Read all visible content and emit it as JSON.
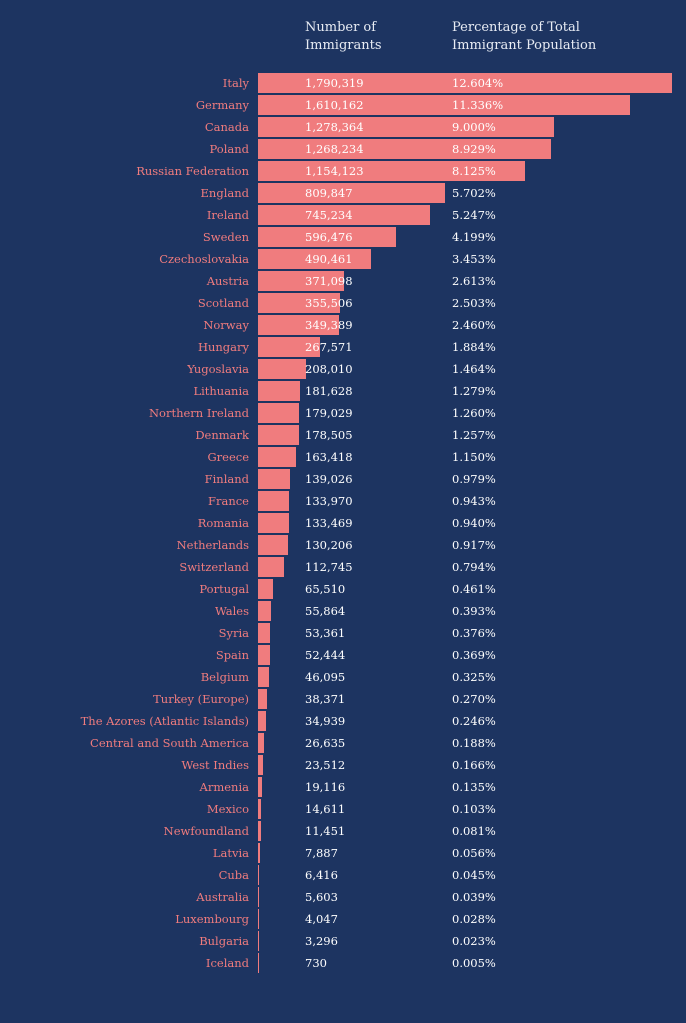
{
  "chart_data": {
    "type": "bar",
    "orientation": "horizontal",
    "title": "",
    "column_headers": {
      "count": "Number of Immigrants",
      "count_lines": [
        "Number of",
        "Immigrants"
      ],
      "percent": "Percentage of Total Immigrant Population",
      "percent_lines": [
        "Percentage of Total",
        "Immigrant Population"
      ]
    },
    "xlim": [
      0,
      1790319
    ],
    "grid": false,
    "colors": {
      "background": "#1d3461",
      "bar": "#f07c7e",
      "label": "#f07c7e",
      "value_text": "#ffffff"
    },
    "categories": [
      "Italy",
      "Germany",
      "Canada",
      "Poland",
      "Russian Federation",
      "England",
      "Ireland",
      "Sweden",
      "Czechoslovakia",
      "Austria",
      "Scotland",
      "Norway",
      "Hungary",
      "Yugoslavia",
      "Lithuania",
      "Northern Ireland",
      "Denmark",
      "Greece",
      "Finland",
      "France",
      "Romania",
      "Netherlands",
      "Switzerland",
      "Portugal",
      "Wales",
      "Syria",
      "Spain",
      "Belgium",
      "Turkey (Europe)",
      "The Azores (Atlantic Islands)",
      "Central and South America",
      "West Indies",
      "Armenia",
      "Mexico",
      "Newfoundland",
      "Latvia",
      "Cuba",
      "Australia",
      "Luxembourg",
      "Bulgaria",
      "Iceland"
    ],
    "values": [
      1790319,
      1610162,
      1278364,
      1268234,
      1154123,
      809847,
      745234,
      596476,
      490461,
      371098,
      355506,
      349389,
      267571,
      208010,
      181628,
      179029,
      178505,
      163418,
      139026,
      133970,
      133469,
      130206,
      112745,
      65510,
      55864,
      53361,
      52444,
      46095,
      38371,
      34939,
      26635,
      23512,
      19116,
      14611,
      11451,
      7887,
      6416,
      5603,
      4047,
      3296,
      730
    ],
    "value_labels": [
      "1,790,319",
      "1,610,162",
      "1,278,364",
      "1,268,234",
      "1,154,123",
      "809,847",
      "745,234",
      "596,476",
      "490,461",
      "371,098",
      "355,506",
      "349,389",
      "267,571",
      "208,010",
      "181,628",
      "179,029",
      "178,505",
      "163,418",
      "139,026",
      "133,970",
      "133,469",
      "130,206",
      "112,745",
      "65,510",
      "55,864",
      "53,361",
      "52,444",
      "46,095",
      "38,371",
      "34,939",
      "26,635",
      "23,512",
      "19,116",
      "14,611",
      "11,451",
      "7,887",
      "6,416",
      "5,603",
      "4,047",
      "3,296",
      "730"
    ],
    "percent_labels": [
      "12.604%",
      "11.336%",
      "9.000%",
      "8.929%",
      "8.125%",
      "5.702%",
      "5.247%",
      "4.199%",
      "3.453%",
      "2.613%",
      "2.503%",
      "2.460%",
      "1.884%",
      "1.464%",
      "1.279%",
      "1.260%",
      "1.257%",
      "1.150%",
      "0.979%",
      "0.943%",
      "0.940%",
      "0.917%",
      "0.794%",
      "0.461%",
      "0.393%",
      "0.376%",
      "0.369%",
      "0.325%",
      "0.270%",
      "0.246%",
      "0.188%",
      "0.166%",
      "0.135%",
      "0.103%",
      "0.081%",
      "0.056%",
      "0.045%",
      "0.039%",
      "0.028%",
      "0.023%",
      "0.005%"
    ]
  }
}
